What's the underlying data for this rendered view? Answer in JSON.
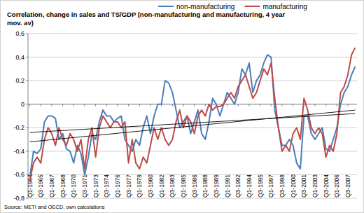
{
  "chart_data": {
    "type": "line",
    "title": "Correlation, change in sales and TS/GDP (non-manufacturing and manufacturing, 4 year\nmov. av)",
    "source": "Source: METI and OECD, own calculations",
    "legend": "top",
    "grid": true,
    "categories": [
      "Q1-1964",
      null,
      null,
      "Q3-1965",
      null,
      null,
      "Q1-1967",
      null,
      null,
      "Q3-1968",
      null,
      null,
      "Q1-1970",
      null,
      null,
      "Q3-1971",
      null,
      null,
      "Q1-1973",
      null,
      null,
      "Q3-1974",
      null,
      null,
      "Q1-1976",
      null,
      null,
      "Q3-1977",
      null,
      null,
      "Q1-1979",
      null,
      null,
      "Q3-1980",
      null,
      null,
      "Q1-1982",
      null,
      null,
      "Q3-1983",
      null,
      null,
      "Q1-1985",
      null,
      null,
      "Q3-1986",
      null,
      null,
      "Q1-1988",
      null,
      null,
      "Q3-1989",
      null,
      null,
      "Q1-1991",
      null,
      null,
      "Q3-1992",
      null,
      null,
      "Q1-1994",
      null,
      null,
      "Q3-1995",
      null,
      null,
      "Q1-1997",
      null,
      null,
      "Q3-1998",
      null,
      null,
      "Q1-2000",
      null,
      null,
      "Q3-2001",
      null,
      null,
      "Q1-2003",
      null,
      null,
      "Q3-2004",
      null,
      null,
      "Q1-2006",
      null,
      null,
      "Q3-2007",
      null,
      null
    ],
    "ylim": [
      -0.8,
      0.6
    ],
    "yticks": [
      {
        "value": -0.8,
        "label": "-0,8"
      },
      {
        "value": -0.6,
        "label": "-0,6"
      },
      {
        "value": -0.4,
        "label": "-0,4"
      },
      {
        "value": -0.2,
        "label": "-0,2"
      },
      0,
      {
        "value": 0.2,
        "label": "0,2"
      },
      {
        "value": 0.4,
        "label": "0,4"
      },
      {
        "value": 0.6,
        "label": "0,6"
      }
    ],
    "series": [
      {
        "name": "non-manufacturing",
        "color": "#4a7ebb",
        "trend": [
          -0.24,
          -0.08
        ],
        "values": [
          -0.62,
          -0.4,
          -0.42,
          -0.38,
          -0.15,
          -0.1,
          -0.1,
          -0.12,
          -0.3,
          -0.25,
          -0.38,
          -0.4,
          -0.5,
          -0.35,
          -0.42,
          -0.6,
          -0.45,
          -0.25,
          -0.3,
          -0.15,
          -0.05,
          -0.1,
          -0.1,
          -0.15,
          -0.12,
          -0.1,
          -0.3,
          -0.35,
          -0.4,
          -0.3,
          -0.35,
          -0.2,
          -0.1,
          -0.25,
          -0.1,
          0.0,
          0.0,
          0.2,
          0.18,
          0.1,
          -0.05,
          -0.2,
          -0.15,
          -0.1,
          -0.25,
          -0.15,
          -0.05,
          -0.25,
          -0.3,
          -0.15,
          0.05,
          0.0,
          -0.1,
          0.0,
          0.1,
          0.05,
          0.0,
          0.1,
          0.3,
          0.25,
          0.35,
          0.1,
          0.2,
          0.25,
          0.35,
          0.42,
          0.4,
          -0.05,
          -0.2,
          -0.35,
          -0.35,
          -0.3,
          -0.35,
          -0.5,
          -0.55,
          -0.1,
          -0.1,
          -0.25,
          -0.3,
          -0.25,
          -0.2,
          -0.38,
          -0.4,
          -0.3,
          -0.2,
          0.0,
          0.1,
          0.15,
          0.25,
          0.32
        ]
      },
      {
        "name": "manufacturing",
        "color": "#be4b48",
        "trend": [
          -0.32,
          -0.05
        ],
        "values": [
          -0.65,
          -0.5,
          -0.45,
          -0.5,
          -0.3,
          -0.2,
          -0.25,
          -0.35,
          -0.2,
          -0.3,
          -0.35,
          -0.25,
          -0.3,
          -0.4,
          -0.3,
          -0.55,
          -0.3,
          -0.2,
          -0.45,
          -0.2,
          -0.1,
          -0.15,
          -0.2,
          -0.15,
          -0.15,
          -0.2,
          -0.15,
          -0.5,
          -0.3,
          -0.5,
          -0.55,
          -0.45,
          -0.5,
          -0.35,
          -0.2,
          -0.3,
          -0.2,
          -0.3,
          -0.35,
          -0.3,
          -0.15,
          -0.05,
          -0.2,
          -0.1,
          -0.15,
          -0.25,
          -0.1,
          -0.05,
          -0.1,
          0.0,
          -0.05,
          -0.02,
          -0.02,
          0.0,
          0.05,
          0.1,
          0.05,
          0.15,
          0.2,
          0.25,
          0.15,
          0.05,
          0.1,
          0.2,
          0.3,
          0.25,
          0.35,
          0.05,
          -0.2,
          -0.4,
          -0.35,
          -0.4,
          -0.25,
          -0.2,
          -0.3,
          0.05,
          -0.05,
          -0.2,
          -0.25,
          -0.2,
          -0.25,
          -0.45,
          -0.35,
          -0.4,
          -0.25,
          0.1,
          0.15,
          0.25,
          0.42,
          0.48
        ]
      }
    ]
  }
}
